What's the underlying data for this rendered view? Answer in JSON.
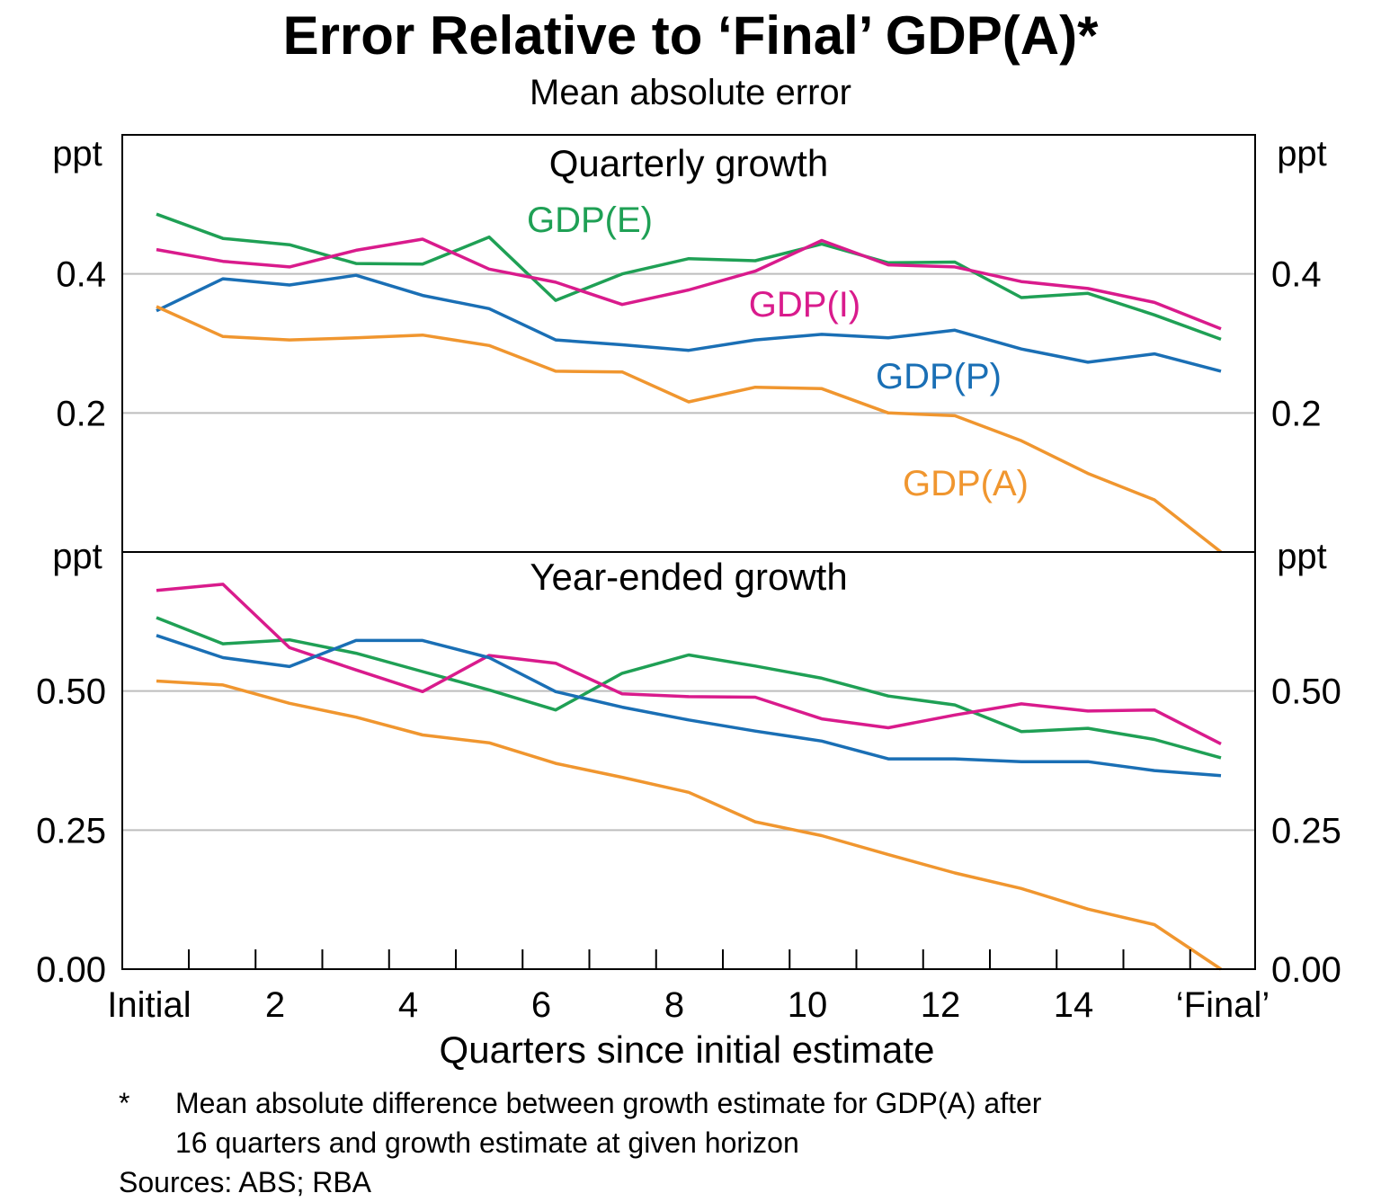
{
  "title": "Error Relative to ‘Final’ GDP(A)*",
  "subtitle": "Mean absolute error",
  "x_axis": {
    "label": "Quarters since initial estimate",
    "tick_labels": [
      {
        "x": 0,
        "label": "Initial"
      },
      {
        "x": 2,
        "label": "2"
      },
      {
        "x": 4,
        "label": "4"
      },
      {
        "x": 6,
        "label": "6"
      },
      {
        "x": 8,
        "label": "8"
      },
      {
        "x": 10,
        "label": "10"
      },
      {
        "x": 12,
        "label": "12"
      },
      {
        "x": 14,
        "label": "14"
      },
      {
        "x": 16,
        "label": "‘Final’"
      }
    ]
  },
  "colors": {
    "GDP(A)": "#f0962f",
    "GDP(E)": "#1fa055",
    "GDP(I)": "#d91b8c",
    "GDP(P)": "#1a6fb5",
    "grid": "#bdbdbd",
    "axis": "#000000"
  },
  "footnote": {
    "marker": "*",
    "text": "Mean absolute difference between growth estimate for GDP(A) after\n16 quarters and growth estimate at given horizon"
  },
  "sources": "Sources: ABS; RBA",
  "chart_data": [
    {
      "type": "line",
      "title": "Quarterly growth",
      "ylabel": "ppt",
      "ylim": [
        0,
        0.6
      ],
      "yticks": [
        0.2,
        0.4
      ],
      "ytick_labels": [
        "0.2",
        "0.4"
      ],
      "grid": true,
      "x": [
        0,
        1,
        2,
        3,
        4,
        5,
        6,
        7,
        8,
        9,
        10,
        11,
        12,
        13,
        14,
        15,
        16
      ],
      "series": [
        {
          "name": "GDP(E)",
          "values": [
            0.486,
            0.451,
            0.442,
            0.415,
            0.414,
            0.453,
            0.362,
            0.4,
            0.422,
            0.419,
            0.443,
            0.416,
            0.417,
            0.366,
            0.372,
            0.341,
            0.306
          ]
        },
        {
          "name": "GDP(I)",
          "values": [
            0.435,
            0.418,
            0.41,
            0.434,
            0.45,
            0.407,
            0.388,
            0.356,
            0.377,
            0.404,
            0.448,
            0.413,
            0.41,
            0.389,
            0.379,
            0.359,
            0.321
          ]
        },
        {
          "name": "GDP(P)",
          "values": [
            0.347,
            0.393,
            0.384,
            0.398,
            0.369,
            0.35,
            0.305,
            0.298,
            0.29,
            0.305,
            0.313,
            0.308,
            0.319,
            0.292,
            0.273,
            0.285,
            0.26
          ]
        },
        {
          "name": "GDP(A)",
          "values": [
            0.353,
            0.31,
            0.305,
            0.308,
            0.312,
            0.297,
            0.26,
            0.259,
            0.216,
            0.237,
            0.235,
            0.2,
            0.196,
            0.16,
            0.113,
            0.075,
            0.0
          ]
        }
      ]
    },
    {
      "type": "line",
      "title": "Year-ended growth",
      "ylabel": "ppt",
      "ylim": [
        0,
        0.75
      ],
      "yticks": [
        0,
        0.25,
        0.5
      ],
      "ytick_labels": [
        "0.00",
        "0.25",
        "0.50"
      ],
      "grid": true,
      "x": [
        0,
        1,
        2,
        3,
        4,
        5,
        6,
        7,
        8,
        9,
        10,
        11,
        12,
        13,
        14,
        15,
        16
      ],
      "series": [
        {
          "name": "GDP(E)",
          "values": [
            0.632,
            0.585,
            0.592,
            0.568,
            0.535,
            0.502,
            0.466,
            0.532,
            0.565,
            0.545,
            0.523,
            0.491,
            0.475,
            0.427,
            0.433,
            0.413,
            0.38
          ]
        },
        {
          "name": "GDP(I)",
          "values": [
            0.681,
            0.692,
            0.578,
            0.538,
            0.499,
            0.564,
            0.55,
            0.495,
            0.49,
            0.489,
            0.45,
            0.434,
            0.457,
            0.477,
            0.464,
            0.466,
            0.405
          ]
        },
        {
          "name": "GDP(P)",
          "values": [
            0.6,
            0.56,
            0.544,
            0.591,
            0.591,
            0.56,
            0.499,
            0.471,
            0.448,
            0.428,
            0.41,
            0.378,
            0.378,
            0.373,
            0.373,
            0.357,
            0.348
          ]
        },
        {
          "name": "GDP(A)",
          "values": [
            0.518,
            0.511,
            0.478,
            0.453,
            0.421,
            0.407,
            0.37,
            0.345,
            0.318,
            0.265,
            0.24,
            0.206,
            0.173,
            0.145,
            0.108,
            0.08,
            0.0
          ]
        }
      ]
    }
  ]
}
